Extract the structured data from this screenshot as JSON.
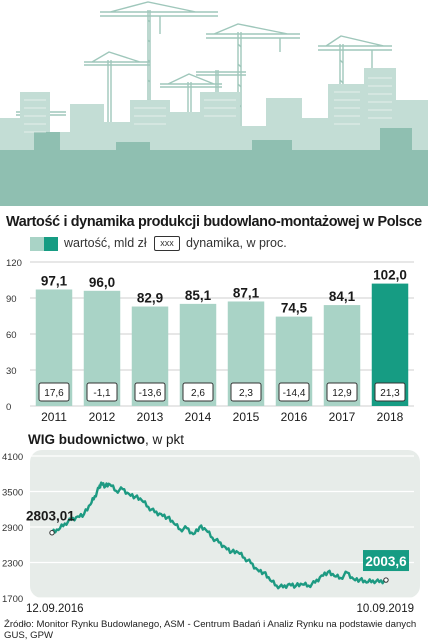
{
  "chart_data": [
    {
      "type": "bar",
      "title": "Wartość i dynamika produkcji budowlano-montażowej w Polsce",
      "legend": {
        "value_label": "wartość, mld zł",
        "dynamics_box": "xxx",
        "dynamics_label": "dynamika, w proc."
      },
      "categories": [
        "2011",
        "2012",
        "2013",
        "2014",
        "2015",
        "2016",
        "2017",
        "2018"
      ],
      "series": [
        {
          "name": "wartość, mld zł",
          "values": [
            97.1,
            96.0,
            82.9,
            85.1,
            87.1,
            74.5,
            84.1,
            102.0
          ],
          "labels": [
            "97,1",
            "96,0",
            "82,9",
            "85,1",
            "87,1",
            "74,5",
            "84,1",
            "102,0"
          ]
        },
        {
          "name": "dynamika, w proc.",
          "values": [
            17.6,
            -1.1,
            -13.6,
            2.6,
            2.3,
            -14.4,
            12.9,
            21.3
          ],
          "labels": [
            "17,6",
            "-1,1",
            "-13,6",
            "2,6",
            "2,3",
            "-14,4",
            "12,9",
            "21,3"
          ]
        }
      ],
      "highlight_category": "2018",
      "ylim": [
        0,
        120
      ],
      "yticks": [
        0,
        30,
        60,
        90,
        120
      ],
      "grid": true,
      "colors": {
        "bar": "#a9d3c6",
        "highlight": "#169c83",
        "grid": "#cfcfcf"
      }
    },
    {
      "type": "line",
      "title": "WIG budownictwo",
      "unit": "w pkt",
      "series": [
        {
          "name": "WIG budownictwo",
          "x": [
            "2016-09-12",
            "2016-10-03",
            "2016-10-24",
            "2016-11-14",
            "2016-12-05",
            "2016-12-26",
            "2017-01-16",
            "2017-01-30",
            "2017-02-13",
            "2017-02-20",
            "2017-03-06",
            "2017-03-20",
            "2017-04-10",
            "2017-05-01",
            "2017-05-22",
            "2017-06-12",
            "2017-07-03",
            "2017-07-24",
            "2017-08-14",
            "2017-09-04",
            "2017-09-25",
            "2017-10-16",
            "2017-11-06",
            "2017-11-27",
            "2017-12-18",
            "2018-01-08",
            "2018-01-29",
            "2018-02-19",
            "2018-03-12",
            "2018-04-02",
            "2018-04-23",
            "2018-05-14",
            "2018-06-04",
            "2018-06-25",
            "2018-07-16",
            "2018-08-06",
            "2018-08-27",
            "2018-09-17",
            "2018-10-08",
            "2018-10-29",
            "2018-11-19",
            "2018-12-10",
            "2018-12-31",
            "2019-01-21",
            "2019-02-11",
            "2019-03-04",
            "2019-03-25",
            "2019-04-15",
            "2019-05-06",
            "2019-05-27",
            "2019-06-17",
            "2019-07-08",
            "2019-07-29",
            "2019-08-19",
            "2019-09-10"
          ],
          "values": [
            2803,
            2850,
            2960,
            3020,
            3080,
            3120,
            3280,
            3420,
            3560,
            3650,
            3590,
            3620,
            3510,
            3540,
            3460,
            3410,
            3350,
            3240,
            3150,
            3120,
            3060,
            2960,
            2860,
            2880,
            2780,
            2900,
            2850,
            2720,
            2640,
            2560,
            2480,
            2470,
            2380,
            2290,
            2180,
            2130,
            2000,
            1910,
            1880,
            1940,
            1905,
            1930,
            1910,
            1960,
            2080,
            2140,
            2070,
            2040,
            2130,
            2020,
            2010,
            1960,
            1995,
            1970,
            2003.6
          ]
        }
      ],
      "xlim": [
        "2016-09-12",
        "2019-09-10"
      ],
      "x_tick_labels": [
        "12.09.2016",
        "10.09.2019"
      ],
      "ylim": [
        1700,
        4100
      ],
      "yticks": [
        1700,
        2300,
        2900,
        3500,
        4100
      ],
      "start_label": "2803,01",
      "end_label": "2003,6",
      "grid": true,
      "colors": {
        "line": "#1d9a82",
        "panel": "#e7ece9",
        "end_badge": "#169c83"
      }
    }
  ],
  "source": "Źródło: Monitor Rynku Budowlanego, ASM - Centrum Badań i Analiz Rynku na podstawie danych GUS, GPW",
  "illustration": {
    "name": "city skyline with construction cranes",
    "colors": {
      "light": "#c3ddd5",
      "dark": "#7fb5a5",
      "sky": "#ffffff"
    }
  }
}
